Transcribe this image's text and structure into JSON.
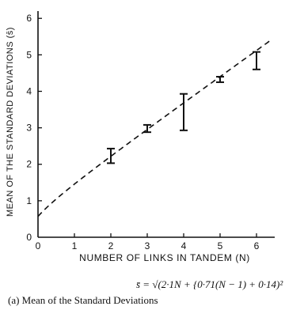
{
  "chart_data": {
    "type": "line",
    "xlabel": "NUMBER OF LINKS IN TANDEM (N)",
    "ylabel": "MEAN OF THE STANDARD DEVIATIONS (s̄)",
    "xlim": [
      0,
      6.5
    ],
    "ylim": [
      0,
      6.2
    ],
    "x_ticks": [
      "0",
      "1",
      "2",
      "3",
      "4",
      "5",
      "6"
    ],
    "y_ticks": [
      "0",
      "1",
      "2",
      "3",
      "4",
      "5",
      "6"
    ],
    "grid": false,
    "points": [
      {
        "x": 2,
        "y": 2.2,
        "low": 2.03,
        "high": 2.43
      },
      {
        "x": 3,
        "y": 2.97,
        "low": 2.88,
        "high": 3.08
      },
      {
        "x": 4,
        "y": 3.5,
        "low": 2.93,
        "high": 3.93
      },
      {
        "x": 5,
        "y": 4.32,
        "low": 4.25,
        "high": 4.4
      },
      {
        "x": 6,
        "y": 4.85,
        "low": 4.6,
        "high": 5.08
      }
    ],
    "curve": {
      "style": "dashed",
      "x_start": 0,
      "x_end": 6.4
    }
  },
  "formula": "s̄ = √(2·1N + {0·71(N − 1) + 0·14)²",
  "caption": "(a) Mean of the Standard Deviations"
}
